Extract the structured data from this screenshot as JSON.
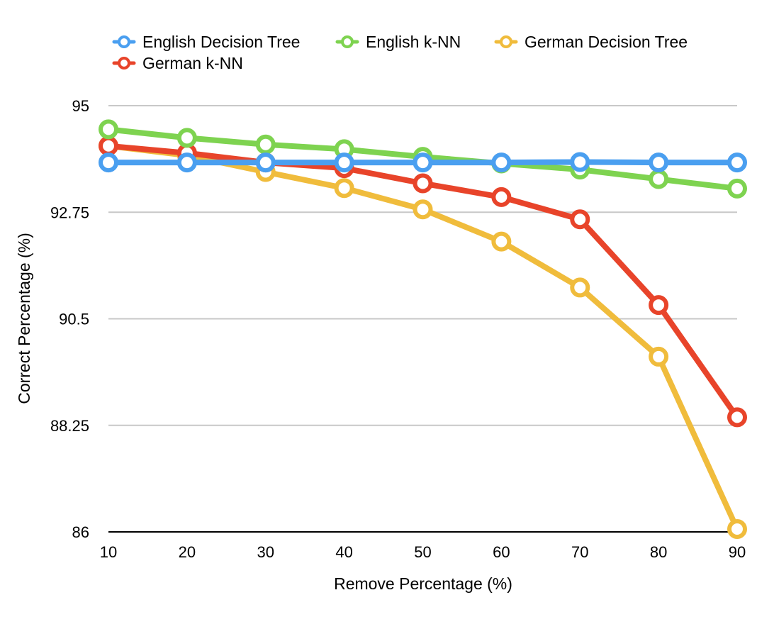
{
  "chart_data": {
    "type": "line",
    "title": "",
    "xlabel": "Remove Percentage (%)",
    "ylabel": "Correct Percentage (%)",
    "x": [
      10,
      20,
      30,
      40,
      50,
      60,
      70,
      80,
      90
    ],
    "x_tick_labels": [
      "10",
      "20",
      "30",
      "40",
      "50",
      "60",
      "70",
      "80",
      "90"
    ],
    "ylim": [
      86,
      95
    ],
    "y_ticks": [
      86,
      88.25,
      90.5,
      92.75,
      95
    ],
    "y_tick_labels": [
      "86",
      "88.25",
      "90.5",
      "92.75",
      "95"
    ],
    "grid": "horizontal",
    "legend_position": "top",
    "series": [
      {
        "name": "English Decision Tree",
        "color": "#4a9ff0",
        "values": [
          93.8,
          93.8,
          93.8,
          93.8,
          93.8,
          93.8,
          93.81,
          93.8,
          93.8
        ]
      },
      {
        "name": "English k-NN",
        "color": "#7ed350",
        "values": [
          94.5,
          94.32,
          94.18,
          94.08,
          93.92,
          93.78,
          93.65,
          93.45,
          93.25
        ]
      },
      {
        "name": "German Decision Tree",
        "color": "#f0bc3c",
        "values": [
          94.15,
          93.95,
          93.6,
          93.26,
          92.81,
          92.13,
          91.16,
          89.7,
          86.06
        ]
      },
      {
        "name": "German k-NN",
        "color": "#e8442a",
        "values": [
          94.15,
          94.0,
          93.8,
          93.68,
          93.36,
          93.07,
          92.6,
          90.79,
          88.42
        ]
      }
    ]
  }
}
